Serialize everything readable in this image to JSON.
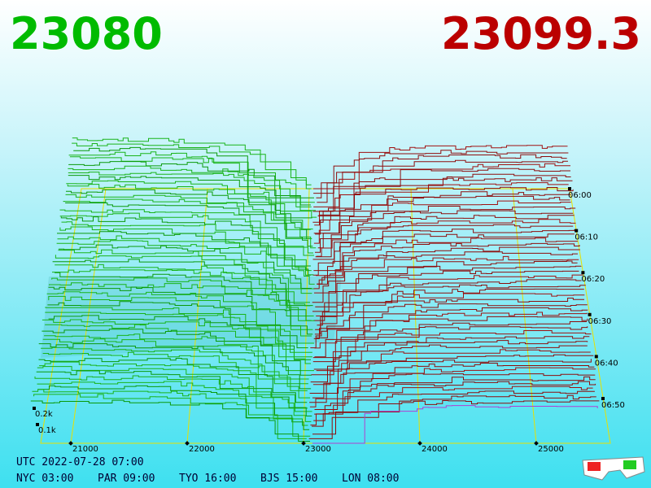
{
  "header": {
    "bid": "23080",
    "ask": "23099.3"
  },
  "price_axis": {
    "labels": [
      "21000",
      "22000",
      "23000",
      "24000",
      "25000"
    ]
  },
  "time_axis": {
    "labels": [
      "06:00",
      "06:10",
      "06:20",
      "06:30",
      "06:40",
      "06:50"
    ]
  },
  "volume_axis": {
    "labels": [
      "0.2k",
      "0.1k"
    ]
  },
  "clock": {
    "utc": "UTC 2022-07-28 07:00",
    "cities": [
      "NYC 03:00",
      "PAR 09:00",
      "TYO 16:00",
      "BJS 15:00",
      "LON 08:00"
    ]
  }
}
